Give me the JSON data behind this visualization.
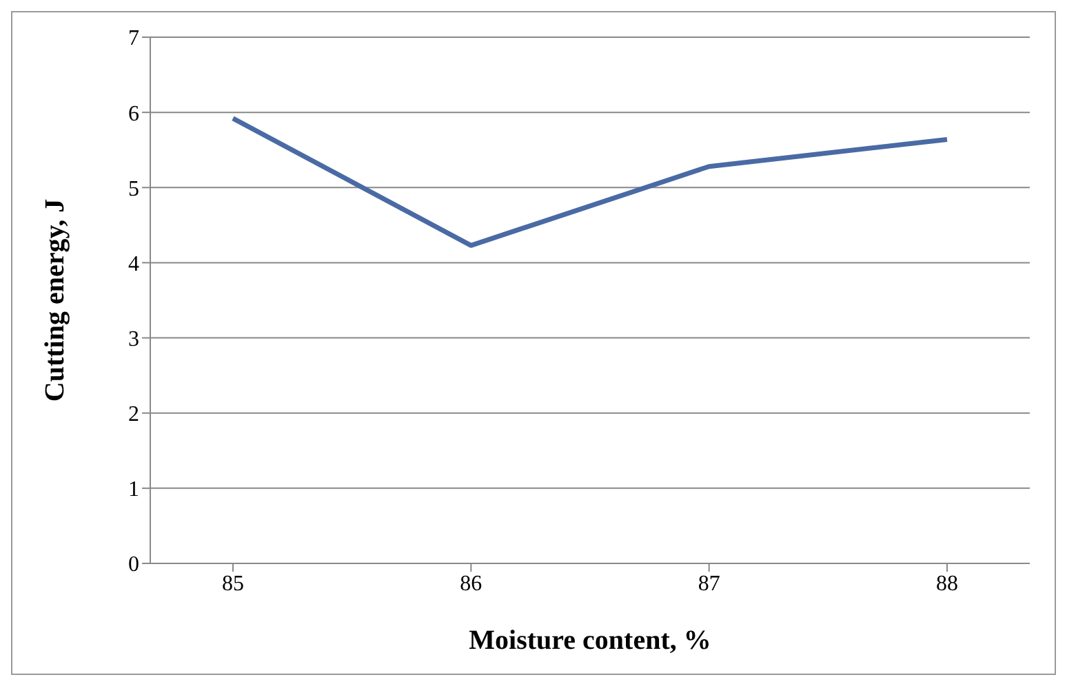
{
  "chart_data": {
    "type": "line",
    "xlabel": "Moisture content, %",
    "ylabel": "Cutting energy, J",
    "categories": [
      "85",
      "86",
      "87",
      "88"
    ],
    "series": [
      {
        "color": "#4a6aa5",
        "values": [
          5.92,
          4.23,
          5.28,
          5.64
        ]
      }
    ],
    "ylim": [
      0,
      7
    ],
    "yticks": [
      0,
      1,
      2,
      3,
      4,
      5,
      6,
      7
    ],
    "grid": "y",
    "marker": "none",
    "line_style": "solid"
  }
}
